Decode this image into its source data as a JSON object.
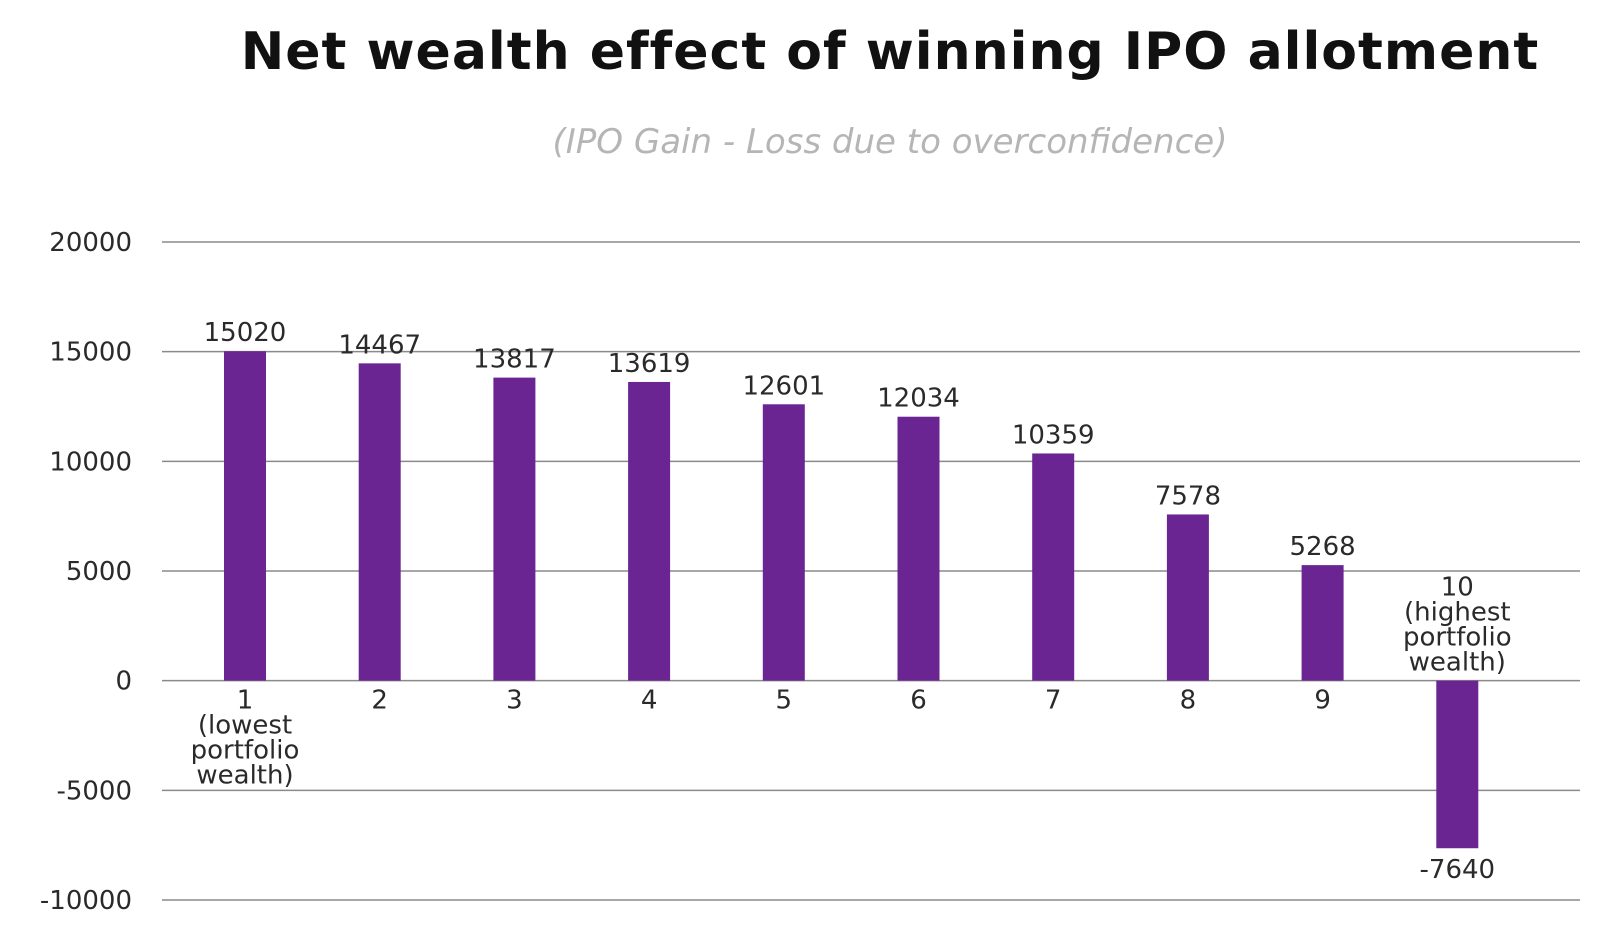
{
  "chart_data": {
    "type": "bar",
    "title": "Net wealth effect of winning IPO allotment",
    "subtitle": "(IPO Gain - Loss due to overconfidence)",
    "xlabel": "",
    "ylabel": "",
    "categories": [
      [
        "1",
        "(lowest",
        "portfolio",
        "wealth)"
      ],
      [
        "2"
      ],
      [
        "3"
      ],
      [
        "4"
      ],
      [
        "5"
      ],
      [
        "6"
      ],
      [
        "7"
      ],
      [
        "8"
      ],
      [
        "9"
      ],
      [
        "10",
        "(highest",
        "portfolio",
        "wealth)"
      ]
    ],
    "values": [
      15020,
      14467,
      13817,
      13619,
      12601,
      12034,
      10359,
      7578,
      5268,
      -7640
    ],
    "data_labels": [
      "15020",
      "14467",
      "13817",
      "13619",
      "12601",
      "12034",
      "10359",
      "7578",
      "5268",
      "-7640"
    ],
    "ylim": [
      -10000,
      20000
    ],
    "yticks": [
      20000,
      15000,
      10000,
      5000,
      0,
      -5000,
      -10000
    ],
    "ytick_labels": [
      "20000",
      "15000",
      "10000",
      "5000",
      "0",
      "-5000",
      "-10000"
    ],
    "grid": true,
    "legend": "none",
    "bar_color": "#6a2592"
  }
}
